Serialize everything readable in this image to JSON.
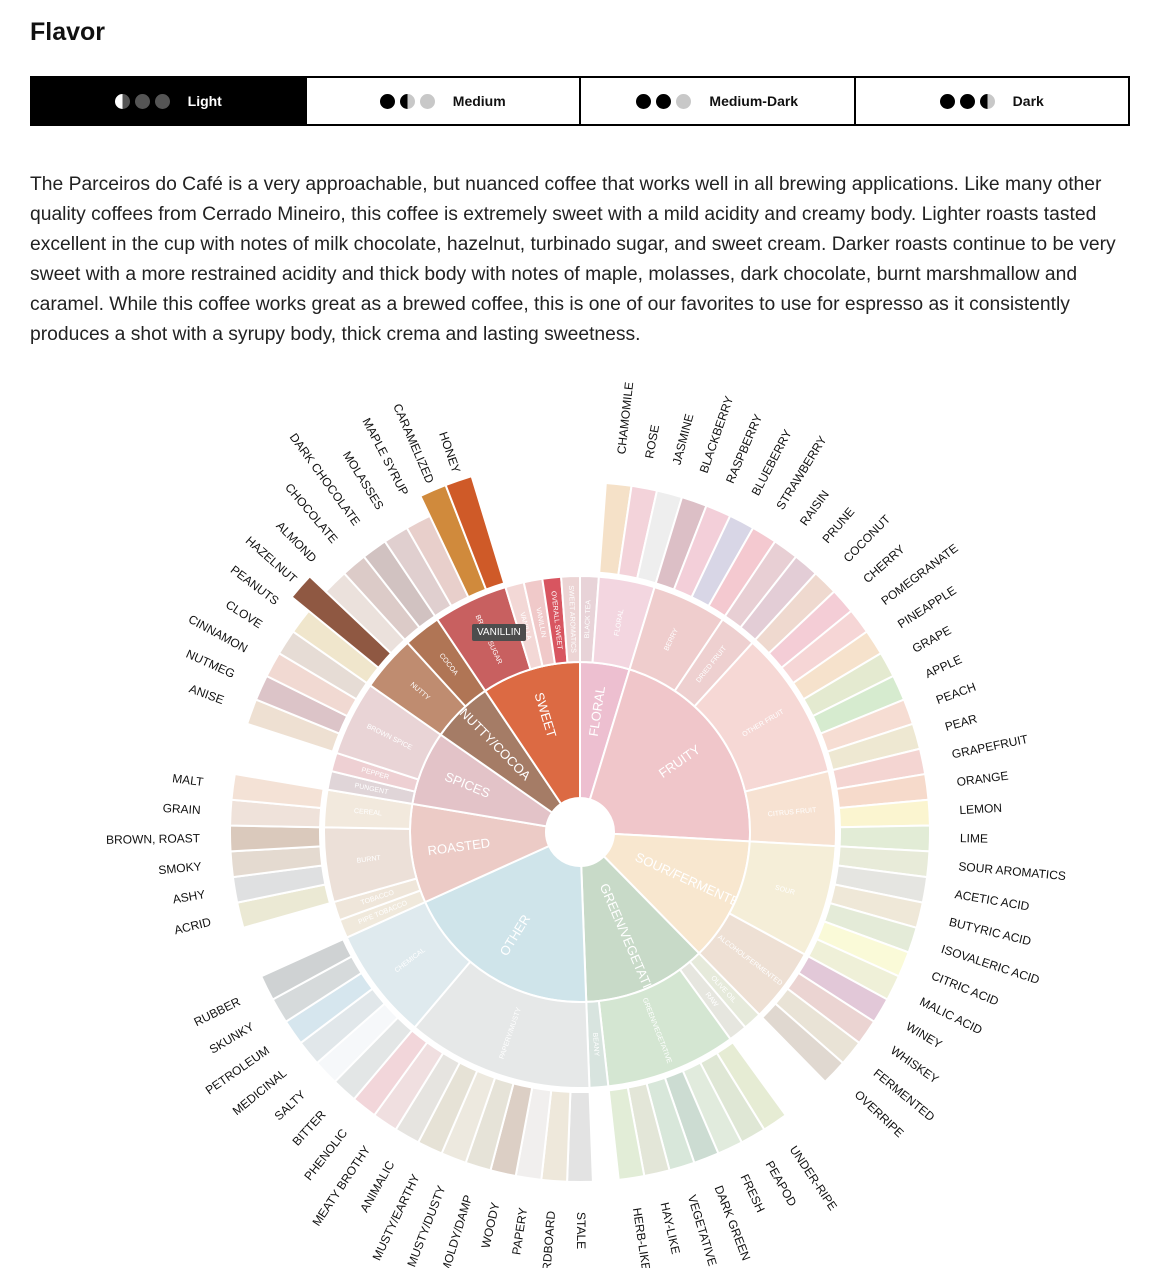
{
  "title": "Flavor",
  "roast_tabs": [
    {
      "label": "Light",
      "dots": [
        "half",
        "empty",
        "empty"
      ],
      "active": true
    },
    {
      "label": "Medium",
      "dots": [
        "full",
        "half",
        "empty"
      ],
      "active": false
    },
    {
      "label": "Medium-Dark",
      "dots": [
        "full",
        "full",
        "empty"
      ],
      "active": false
    },
    {
      "label": "Dark",
      "dots": [
        "full",
        "full",
        "half"
      ],
      "active": false
    }
  ],
  "description": "The Parceiros do Café is a very approachable, but nuanced coffee that works well in all brewing applications. Like many other quality coffees from Cerrado Mineiro, this coffee is extremely sweet with a mild acidity and creamy body. Lighter roasts tasted excellent in the cup with notes of milk chocolate, hazelnut, turbinado sugar, and sweet cream. Darker roasts continue to be very sweet with a more restrained acidity and thick body with notes of maple, molasses, dark chocolate, burnt marshmallow and caramel. While this coffee works great as a brewed coffee, this is one of our favorites to use for espresso as it consistently produces a shot with a syrupy body, thick crema and lasting sweetness.",
  "tooltip": "VANILLIN",
  "chart_data": {
    "type": "sunburst",
    "title": "",
    "highlighted": [
      "HONEY",
      "CARAMELIZED",
      "HAZELNUT",
      "VANILLIN"
    ],
    "categories": [
      {
        "name": "FLORAL",
        "color": "#edbfd0",
        "children": [
          {
            "name": "BLACK TEA",
            "color": "#e8d3d8",
            "children": []
          },
          {
            "name": "FLORAL",
            "color": "#f3d6e0",
            "children": [
              {
                "name": "CHAMOMILE",
                "color": "#f5e1c8"
              },
              {
                "name": "ROSE",
                "color": "#f3d3da"
              },
              {
                "name": "JASMINE",
                "color": "#eeeeee"
              }
            ]
          }
        ]
      },
      {
        "name": "FRUITY",
        "color": "#f0c6ca",
        "children": [
          {
            "name": "BERRY",
            "color": "#efcdcd",
            "children": [
              {
                "name": "BLACKBERRY",
                "color": "#dcbfc6"
              },
              {
                "name": "RASPBERRY",
                "color": "#f3cfd9"
              },
              {
                "name": "BLUEBERRY",
                "color": "#d8d6e6"
              },
              {
                "name": "STRAWBERRY",
                "color": "#f4c9d0"
              }
            ]
          },
          {
            "name": "DRIED FRUIT",
            "color": "#eed0d0",
            "children": [
              {
                "name": "RAISIN",
                "color": "#e8cfd4"
              },
              {
                "name": "PRUNE",
                "color": "#e3cdd6"
              }
            ]
          },
          {
            "name": "OTHER FRUIT",
            "color": "#f6d8d5",
            "children": [
              {
                "name": "COCONUT",
                "color": "#efd9cf"
              },
              {
                "name": "CHERRY",
                "color": "#f4cdd6"
              },
              {
                "name": "POMEGRANATE",
                "color": "#f6d6d6"
              },
              {
                "name": "PINEAPPLE",
                "color": "#f6e2cc"
              },
              {
                "name": "GRAPE",
                "color": "#e4ead0"
              },
              {
                "name": "APPLE",
                "color": "#d6ebcf"
              },
              {
                "name": "PEACH",
                "color": "#f6ddd3"
              },
              {
                "name": "PEAR",
                "color": "#eee8d2"
              }
            ]
          },
          {
            "name": "CITRUS FRUIT",
            "color": "#f7e2d2",
            "children": [
              {
                "name": "GRAPEFRUIT",
                "color": "#f4d5d2"
              },
              {
                "name": "ORANGE",
                "color": "#f6dacb"
              },
              {
                "name": "LEMON",
                "color": "#fbf5d0"
              },
              {
                "name": "LIME",
                "color": "#e2ecd6"
              }
            ]
          }
        ]
      },
      {
        "name": "SOUR/FERMENTED",
        "color": "#f8e7cf",
        "children": [
          {
            "name": "SOUR",
            "color": "#f5eed8",
            "children": [
              {
                "name": "SOUR AROMATICS",
                "color": "#e8ebd9"
              },
              {
                "name": "ACETIC ACID",
                "color": "#e5e5e1"
              },
              {
                "name": "BUTYRIC ACID",
                "color": "#efe8d8"
              },
              {
                "name": "ISOVALERIC ACID",
                "color": "#e4ebd8"
              },
              {
                "name": "CITRIC ACID",
                "color": "#fafad8"
              },
              {
                "name": "MALIC ACID",
                "color": "#eff0d8"
              }
            ]
          },
          {
            "name": "ALCOHOL/FERMENTED",
            "color": "#eee0d4",
            "children": [
              {
                "name": "WINEY",
                "color": "#e2c8d8"
              },
              {
                "name": "WHISKEY",
                "color": "#ebd4d2"
              },
              {
                "name": "FERMENTED",
                "color": "#e9e3d6"
              },
              {
                "name": "OVERRIPE",
                "color": "#e0d8d0"
              }
            ]
          }
        ]
      },
      {
        "name": "GREEN/VEGETATIVE",
        "color": "#c8dac8",
        "children": [
          {
            "name": "OLIVE OIL",
            "color": "#e6eadb",
            "children": []
          },
          {
            "name": "RAW",
            "color": "#e6e6df",
            "children": []
          },
          {
            "name": "GREEN/VEGETATIVE",
            "color": "#d4e6d2",
            "children": [
              {
                "name": "UNDER-RIPE",
                "color": "#e6ecd4"
              },
              {
                "name": "PEAPOD",
                "color": "#dfe7d5"
              },
              {
                "name": "FRESH",
                "color": "#e1ebdd"
              },
              {
                "name": "DARK GREEN",
                "color": "#ccdcd2"
              },
              {
                "name": "VEGETATIVE",
                "color": "#d8e7da"
              },
              {
                "name": "HAY-LIKE",
                "color": "#e3e6d8"
              },
              {
                "name": "HERB-LIKE",
                "color": "#e2edd7"
              }
            ]
          },
          {
            "name": "BEANY",
            "color": "#d8e4df",
            "children": []
          }
        ]
      },
      {
        "name": "OTHER",
        "color": "#cfe4ea",
        "children": [
          {
            "name": "PAPERY/MUSTY",
            "color": "#e6e8e8",
            "children": [
              {
                "name": "STALE",
                "color": "#e3e3e3"
              },
              {
                "name": "CARDBOARD",
                "color": "#eee8db"
              },
              {
                "name": "PAPERY",
                "color": "#f1efee"
              },
              {
                "name": "WOODY",
                "color": "#dccfc5"
              },
              {
                "name": "MOLDY/DAMP",
                "color": "#e6e3d8"
              },
              {
                "name": "MUSTY/DUSTY",
                "color": "#ede9df"
              },
              {
                "name": "MUSTY/EARTHY",
                "color": "#e6e2d6"
              },
              {
                "name": "ANIMALIC",
                "color": "#e6e4e0"
              },
              {
                "name": "MEATY BROTHY",
                "color": "#f0dfe0"
              },
              {
                "name": "PHENOLIC",
                "color": "#f2d6da"
              }
            ]
          },
          {
            "name": "CHEMICAL",
            "color": "#dfeaee",
            "children": [
              {
                "name": "BITTER",
                "color": "#e3e6e6"
              },
              {
                "name": "SALTY",
                "color": "#f6f8fa"
              },
              {
                "name": "MEDICINAL",
                "color": "#e1e7ea"
              },
              {
                "name": "PETROLEUM",
                "color": "#d6e6ee"
              },
              {
                "name": "SKUNKY",
                "color": "#d6dadb"
              },
              {
                "name": "RUBBER",
                "color": "#cfd2d3"
              }
            ]
          }
        ]
      },
      {
        "name": "ROASTED",
        "color": "#eccbc6",
        "children": [
          {
            "name": "PIPE TOBACCO",
            "color": "#f0e9dc",
            "children": []
          },
          {
            "name": "TOBACCO",
            "color": "#efe6da",
            "children": []
          },
          {
            "name": "BURNT",
            "color": "#ece0d8",
            "children": [
              {
                "name": "ACRID",
                "color": "#ebe9d4"
              },
              {
                "name": "ASHY",
                "color": "#dfe0e1"
              },
              {
                "name": "SMOKY",
                "color": "#e4dad0"
              },
              {
                "name": "BROWN, ROAST",
                "color": "#dac9bc"
              }
            ]
          },
          {
            "name": "CEREAL",
            "color": "#f2e9dd",
            "children": [
              {
                "name": "GRAIN",
                "color": "#efe2da"
              },
              {
                "name": "MALT",
                "color": "#f4e2d6"
              }
            ]
          }
        ]
      },
      {
        "name": "SPICES",
        "color": "#e3c3c8",
        "children": [
          {
            "name": "PUNGENT",
            "color": "#e0d5d8",
            "children": []
          },
          {
            "name": "PEPPER",
            "color": "#eed0d3",
            "children": []
          },
          {
            "name": "BROWN SPICE",
            "color": "#e9d4d6",
            "children": [
              {
                "name": "ANISE",
                "color": "#eee0d2"
              },
              {
                "name": "NUTMEG",
                "color": "#dcc4c8"
              },
              {
                "name": "CINNAMON",
                "color": "#f1d9d2"
              },
              {
                "name": "CLOVE",
                "color": "#e6dcd5"
              }
            ]
          }
        ]
      },
      {
        "name": "NUTTY/COCOA",
        "color": "#a57c66",
        "children": [
          {
            "name": "NUTTY",
            "color": "#bf8c70",
            "children": [
              {
                "name": "PEANUTS",
                "color": "#f0e6cc"
              },
              {
                "name": "HAZELNUT",
                "color": "#8f5842"
              },
              {
                "name": "ALMOND",
                "color": "#ebe1dc"
              }
            ]
          },
          {
            "name": "COCOA",
            "color": "#b07555",
            "children": [
              {
                "name": "CHOCOLATE",
                "color": "#dccbc8"
              },
              {
                "name": "DARK CHOCOLATE",
                "color": "#d1c2c1"
              }
            ]
          }
        ]
      },
      {
        "name": "SWEET",
        "color": "#dc6a43",
        "children": [
          {
            "name": "BROWN SUGAR",
            "color": "#c86060",
            "children": [
              {
                "name": "MOLASSES",
                "color": "#e0cfcf"
              },
              {
                "name": "MAPLE SYRUP",
                "color": "#e8cfcb"
              },
              {
                "name": "CARAMELIZED",
                "color": "#d08a3c"
              },
              {
                "name": "HONEY",
                "color": "#cf5a28"
              }
            ]
          },
          {
            "name": "VANILLA",
            "color": "#f3d8d6",
            "children": []
          },
          {
            "name": "VANILLIN",
            "color": "#f0c9c9",
            "children": []
          },
          {
            "name": "OVERALL SWEET",
            "color": "#d85560",
            "children": []
          },
          {
            "name": "SWEET AROMATICS",
            "color": "#ecd4d4",
            "children": []
          }
        ]
      }
    ]
  }
}
